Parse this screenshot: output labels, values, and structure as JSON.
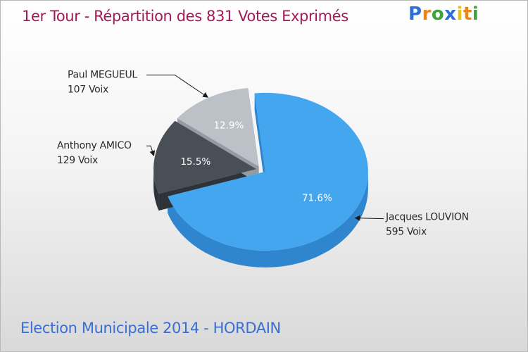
{
  "header": {
    "title": "1er Tour - Répartition des 831 Votes Exprimés",
    "logo_letters": [
      {
        "char": "P",
        "color": "#2c6fd6"
      },
      {
        "char": "r",
        "color": "#e8861a"
      },
      {
        "char": "o",
        "color": "#3aa53a"
      },
      {
        "char": "x",
        "color": "#2c6fd6"
      },
      {
        "char": "i",
        "color": "#e5c21a"
      },
      {
        "char": "t",
        "color": "#e8861a"
      },
      {
        "char": "i",
        "color": "#3aa53a"
      }
    ]
  },
  "footer": {
    "title": "Election Municipale 2014 - HORDAIN"
  },
  "chart_data": {
    "type": "pie",
    "title": "1er Tour - Répartition des 831 Votes Exprimés",
    "total": 831,
    "slices": [
      {
        "name": "Jacques LOUVION",
        "votes_label": "595 Voix",
        "votes": 595,
        "percent": 71.6,
        "percent_label": "71.6%",
        "color": "#44a6ef",
        "side_color": "#2f86cf"
      },
      {
        "name": "Anthony AMICO",
        "votes_label": "129 Voix",
        "votes": 129,
        "percent": 15.5,
        "percent_label": "15.5%",
        "color": "#484f56",
        "side_color": "#2d3338"
      },
      {
        "name": "Paul MEGUEUL",
        "votes_label": "107 Voix",
        "votes": 107,
        "percent": 12.9,
        "percent_label": "12.9%",
        "color": "#bcc1c7",
        "side_color": "#959ba2"
      }
    ]
  }
}
